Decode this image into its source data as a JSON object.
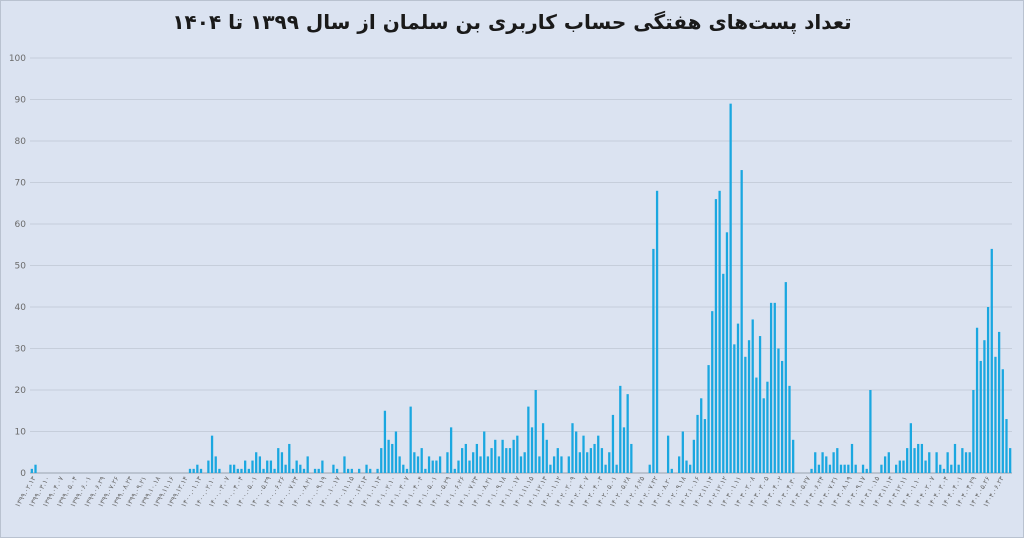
{
  "chart_data": {
    "type": "bar",
    "title": "تعداد پست‌های هفتگی حساب کاربری بن سلمان از سال ۱۳۹۹ تا ۱۴۰۴",
    "xlabel": "",
    "ylabel": "",
    "ylim": [
      0,
      100
    ],
    "grid": true,
    "color": "#1aa7e0",
    "y_ticks": [
      "0",
      "10",
      "20",
      "30",
      "40",
      "50",
      "60",
      "70",
      "80",
      "90",
      "100"
    ],
    "x_tick_labels": [
      "۱۳۹۹.۰۲.۱۳",
      "۱۳۹۹.۰۳.۱۰",
      "۱۳۹۹.۰۴.۰۷",
      "۱۳۹۹.۰۵.۰۴",
      "۱۳۹۹.۰۶.۰۱",
      "۱۳۹۹.۰۶.۲۹",
      "۱۳۹۹.۰۷.۲۶",
      "۱۳۹۹.۰۸.۲۳",
      "۱۳۹۹.۰۹.۲۱",
      "۱۳۹۹.۱۰.۱۸",
      "۱۳۹۹.۱۱.۱۶",
      "۱۳۹۹.۱۲.۱۴",
      "۱۴۰۰.۰۱.۱۳",
      "۱۴۰۰.۰۲.۱۰",
      "۱۴۰۰.۰۳.۰۷",
      "۱۴۰۰.۰۴.۰۴",
      "۱۴۰۰.۰۵.۰۱",
      "۱۴۰۰.۰۵.۲۹",
      "۱۴۰۰.۰۶.۲۶",
      "۱۴۰۰.۰۷.۲۴",
      "۱۴۰۰.۰۸.۲۱",
      "۱۴۰۰.۰۹.۱۹",
      "۱۴۰۰.۱۰.۱۷",
      "۱۴۰۰.۱۱.۱۵",
      "۱۴۰۰.۱۲.۱۳",
      "۱۴۰۱.۰۱.۱۳",
      "۱۴۰۱.۰۲.۱۰",
      "۱۴۰۱.۰۳.۰۷",
      "۱۴۰۱.۰۴.۰۴",
      "۱۴۰۱.۰۵.۰۱",
      "۱۴۰۱.۰۵.۲۹",
      "۱۴۰۱.۰۶.۲۶",
      "۱۴۰۱.۰۷.۲۳",
      "۱۴۰۱.۰۸.۲۱",
      "۱۴۰۱.۰۹.۱۸",
      "۱۴۰۱.۱۰.۱۷",
      "۱۴۰۱.۱۱.۱۵",
      "۱۴۰۱.۱۲.۱۳",
      "۱۴۰۲.۰۱.۱۲",
      "۱۴۰۲.۰۲.۰۹",
      "۱۴۰۲.۰۳.۰۷",
      "۱۴۰۲.۰۴.۰۳",
      "۱۴۰۲.۰۵.۰۱",
      "۱۴۰۲.۰۵.۲۸",
      "۱۴۰۲.۰۶.۲۵",
      "۱۴۰۲.۰۷.۲۲",
      "۱۴۰۲.۰۸.۲۰",
      "۱۴۰۲.۰۹.۱۸",
      "۱۴۰۲.۱۰.۱۶",
      "۱۴۰۲.۱۱.۱۴",
      "۱۴۰۲.۱۲.۱۲",
      "۱۴۰۳.۰۱.۱۱",
      "۱۴۰۳.۰۲.۰۸",
      "۱۴۰۳.۰۳.۰۵",
      "۱۴۰۳.۰۴.۰۲",
      "۱۴۰۳.۰۴.۳۰",
      "۱۴۰۳.۰۵.۲۷",
      "۱۴۰۳.۰۶.۲۴",
      "۱۴۰۳.۰۷.۲۱",
      "۱۴۰۳.۰۸.۱۹",
      "۱۴۰۳.۰۹.۱۷",
      "۱۴۰۳.۱۰.۱۵",
      "۱۴۰۳.۱۱.۱۳",
      "۱۴۰۳.۱۲.۱۱",
      "۱۴۰۴.۰۱.۱۰",
      "۱۴۰۴.۰۲.۰۷",
      "۱۴۰۴.۰۳.۰۴",
      "۱۴۰۴.۰۴.۰۱",
      "۱۴۰۴.۰۴.۲۹",
      "۱۴۰۴.۰۵.۲۶",
      "۱۴۰۴.۰۶.۲۳"
    ],
    "values": [
      1,
      2,
      0,
      0,
      0,
      0,
      0,
      0,
      0,
      0,
      0,
      0,
      0,
      0,
      0,
      0,
      0,
      0,
      0,
      0,
      0,
      0,
      0,
      0,
      0,
      0,
      0,
      0,
      0,
      0,
      0,
      0,
      0,
      0,
      0,
      0,
      0,
      0,
      0,
      0,
      0,
      0,
      0,
      1,
      1,
      2,
      1,
      0,
      3,
      9,
      4,
      1,
      0,
      0,
      2,
      2,
      1,
      1,
      3,
      1,
      3,
      5,
      4,
      1,
      3,
      3,
      1,
      6,
      5,
      2,
      7,
      1,
      3,
      2,
      1,
      4,
      0,
      1,
      1,
      3,
      0,
      0,
      2,
      1,
      0,
      4,
      1,
      1,
      0,
      1,
      0,
      2,
      1,
      0,
      1,
      6,
      15,
      8,
      7,
      10,
      4,
      2,
      1,
      16,
      5,
      4,
      6,
      1,
      4,
      3,
      3,
      4,
      0,
      5,
      11,
      1,
      3,
      6,
      7,
      3,
      5,
      7,
      4,
      10,
      4,
      6,
      8,
      4,
      8,
      6,
      6,
      8,
      9,
      4,
      5,
      16,
      11,
      20,
      4,
      12,
      8,
      2,
      4,
      6,
      4,
      0,
      4,
      12,
      10,
      5,
      9,
      5,
      6,
      7,
      9,
      6,
      2,
      5,
      14,
      2,
      21,
      11,
      19,
      7,
      0,
      0,
      0,
      0,
      2,
      54,
      68,
      0,
      0,
      9,
      1,
      0,
      4,
      10,
      3,
      2,
      8,
      14,
      18,
      13,
      26,
      39,
      66,
      68,
      48,
      58,
      89,
      31,
      36,
      73,
      28,
      32,
      37,
      23,
      33,
      18,
      22,
      41,
      41,
      30,
      27,
      46,
      21,
      8,
      0,
      0,
      0,
      0,
      1,
      5,
      2,
      5,
      4,
      2,
      5,
      6,
      2,
      2,
      2,
      7,
      2,
      0,
      2,
      1,
      20,
      0,
      0,
      2,
      4,
      5,
      0,
      2,
      3,
      3,
      6,
      12,
      6,
      7,
      7,
      3,
      5,
      0,
      5,
      2,
      1,
      5,
      2,
      7,
      2,
      6,
      5,
      5,
      20,
      35,
      27,
      32,
      40,
      54,
      28,
      34,
      25,
      13,
      6
    ]
  }
}
